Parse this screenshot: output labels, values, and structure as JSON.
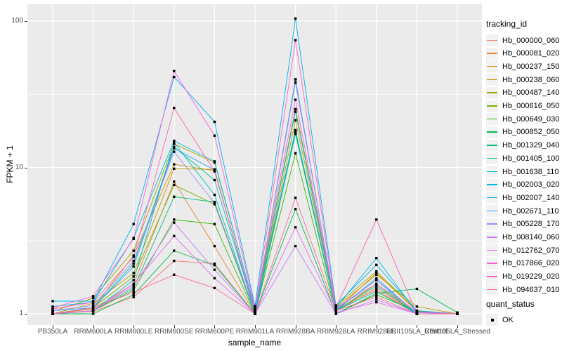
{
  "chart_data": {
    "type": "line",
    "title": "",
    "xlabel": "sample_name",
    "ylabel": "FPKM + 1",
    "x_scale": "categorical",
    "y_scale": "log10",
    "ylim": [
      0.95,
      130
    ],
    "grid": true,
    "legend_position": "right",
    "legend_title": "tracking_id",
    "quant_legend": {
      "title": "quant_status",
      "items": [
        "OK"
      ]
    },
    "point_marker": "black-square",
    "y_ticks": [
      {
        "label": "1",
        "value": 1
      },
      {
        "label": "10",
        "value": 10
      },
      {
        "label": "100",
        "value": 100
      }
    ],
    "categories": [
      "PB350LA",
      "RRIM600LA",
      "RRIM600LE",
      "RRIM600SE",
      "RRIM600PE",
      "RRIM901LA",
      "RRIM928BA",
      "RRIM928LA",
      "RRIM928LE",
      "RRII105LA_Control",
      "RRII105LA_Stressed"
    ],
    "series": [
      {
        "name": "Hb_000000_060",
        "color": "#F8766D",
        "values": [
          1.0,
          1.04,
          1.3,
          2.3,
          2.2,
          1.0,
          17.0,
          1.04,
          1.5,
          1.0,
          1.0
        ]
      },
      {
        "name": "Hb_000081_020",
        "color": "#EA8331",
        "values": [
          1.0,
          1.08,
          1.6,
          8.0,
          2.9,
          1.0,
          25.0,
          1.08,
          1.45,
          1.0,
          1.0
        ]
      },
      {
        "name": "Hb_000237_150",
        "color": "#D89000",
        "values": [
          1.0,
          1.1,
          2.5,
          10.5,
          9.5,
          1.04,
          40.0,
          1.05,
          1.9,
          1.04,
          1.0
        ]
      },
      {
        "name": "Hb_000238_060",
        "color": "#C09B00",
        "values": [
          1.0,
          1.18,
          1.9,
          9.8,
          9.7,
          1.0,
          21.0,
          1.1,
          1.85,
          1.12,
          1.0
        ]
      },
      {
        "name": "Hb_000487_140",
        "color": "#A3A500",
        "values": [
          1.04,
          1.28,
          2.7,
          14.5,
          10.8,
          1.08,
          25.0,
          1.13,
          1.95,
          1.05,
          1.0
        ]
      },
      {
        "name": "Hb_000616_050",
        "color": "#7CAE00",
        "values": [
          1.0,
          1.1,
          1.8,
          7.6,
          5.6,
          1.0,
          17.5,
          1.04,
          1.6,
          1.0,
          1.0
        ]
      },
      {
        "name": "Hb_000649_030",
        "color": "#39B600",
        "values": [
          1.0,
          1.05,
          1.45,
          4.4,
          4.1,
          1.0,
          12.5,
          1.0,
          1.35,
          1.04,
          1.0
        ]
      },
      {
        "name": "Hb_000852_050",
        "color": "#00BB4E",
        "values": [
          1.0,
          1.0,
          1.35,
          2.7,
          2.15,
          1.0,
          5.2,
          1.0,
          1.38,
          1.48,
          1.02
        ]
      },
      {
        "name": "Hb_001329_040",
        "color": "#00BF7D",
        "values": [
          1.0,
          1.05,
          1.5,
          6.3,
          5.8,
          1.0,
          17.0,
          1.05,
          1.55,
          1.0,
          1.0
        ]
      },
      {
        "name": "Hb_001405_100",
        "color": "#00C1A3",
        "values": [
          1.0,
          1.1,
          2.2,
          13.8,
          8.2,
          1.04,
          18.0,
          1.07,
          1.7,
          1.0,
          1.0
        ]
      },
      {
        "name": "Hb_001638_110",
        "color": "#00BFC4",
        "values": [
          1.0,
          1.05,
          1.7,
          14.8,
          6.5,
          1.0,
          17.5,
          1.05,
          1.42,
          1.0,
          1.0
        ]
      },
      {
        "name": "Hb_002003_020",
        "color": "#00BAE0",
        "values": [
          1.12,
          1.2,
          3.3,
          15.2,
          11.0,
          1.07,
          24.0,
          1.1,
          2.4,
          1.02,
          1.0
        ]
      },
      {
        "name": "Hb_002007_140",
        "color": "#00B0F6",
        "values": [
          1.22,
          1.22,
          4.1,
          41.5,
          20.5,
          1.13,
          104.0,
          1.14,
          2.16,
          1.05,
          1.0
        ]
      },
      {
        "name": "Hb_002671_110",
        "color": "#35A2FF",
        "values": [
          1.05,
          1.1,
          2.1,
          13.5,
          9.6,
          1.0,
          40.0,
          1.05,
          1.75,
          1.0,
          1.0
        ]
      },
      {
        "name": "Hb_005228_170",
        "color": "#9590FF",
        "values": [
          1.05,
          1.14,
          2.3,
          12.8,
          5.7,
          1.04,
          38.0,
          1.08,
          1.7,
          1.02,
          1.0
        ]
      },
      {
        "name": "Hb_008140_060",
        "color": "#C77CFF",
        "values": [
          1.0,
          1.05,
          1.55,
          4.2,
          2.0,
          1.0,
          2.9,
          1.0,
          1.25,
          1.0,
          1.0
        ]
      },
      {
        "name": "Hb_012762_070",
        "color": "#E76BF3",
        "values": [
          1.0,
          1.05,
          1.6,
          3.4,
          1.75,
          1.0,
          3.9,
          1.02,
          1.2,
          1.0,
          1.0
        ]
      },
      {
        "name": "Hb_017866_020",
        "color": "#FA62DB",
        "values": [
          1.1,
          1.32,
          3.25,
          45.5,
          16.5,
          1.1,
          29.0,
          1.1,
          1.6,
          1.03,
          1.0
        ]
      },
      {
        "name": "Hb_019229_020",
        "color": "#FF62BC",
        "values": [
          1.08,
          1.2,
          2.45,
          25.5,
          9.4,
          1.05,
          74.0,
          1.1,
          4.4,
          1.0,
          1.0
        ]
      },
      {
        "name": "Hb_094637_010",
        "color": "#FF6A98",
        "values": [
          1.0,
          1.1,
          1.4,
          1.85,
          1.5,
          1.0,
          6.2,
          1.05,
          1.3,
          1.0,
          1.0
        ]
      }
    ]
  }
}
